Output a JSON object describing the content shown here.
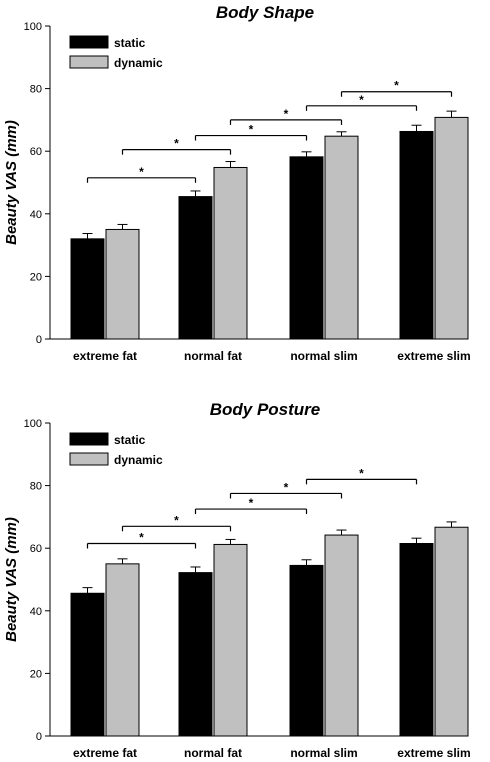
{
  "chart_data": [
    {
      "type": "bar",
      "title": "Body Shape",
      "ylabel": "Beauty VAS (mm)",
      "xlabel": "",
      "ylim": [
        0,
        100
      ],
      "yticks": [
        0,
        20,
        40,
        60,
        80,
        100
      ],
      "categories": [
        "extreme fat",
        "normal fat",
        "normal slim",
        "extreme slim"
      ],
      "series": [
        {
          "name": "static",
          "color": "#000000",
          "values": [
            32,
            45.5,
            58.2,
            66.3
          ],
          "errors": [
            1.7,
            1.8,
            1.6,
            2.0
          ]
        },
        {
          "name": "dynamic",
          "color": "#c0c0c0",
          "values": [
            35,
            54.8,
            64.8,
            70.8
          ],
          "errors": [
            1.6,
            1.9,
            1.4,
            2.0
          ]
        }
      ],
      "legend_position": "top-left",
      "significance": [
        {
          "from": [
            0,
            0
          ],
          "to": [
            1,
            0
          ],
          "y": 51.5,
          "label": "*"
        },
        {
          "from": [
            0,
            1
          ],
          "to": [
            1,
            1
          ],
          "y": 60.5,
          "label": "*"
        },
        {
          "from": [
            1,
            0
          ],
          "to": [
            2,
            0
          ],
          "y": 65,
          "label": "*"
        },
        {
          "from": [
            1,
            1
          ],
          "to": [
            2,
            1
          ],
          "y": 70,
          "label": "*"
        },
        {
          "from": [
            2,
            0
          ],
          "to": [
            3,
            0
          ],
          "y": 74.5,
          "label": "*"
        },
        {
          "from": [
            2,
            1
          ],
          "to": [
            3,
            1
          ],
          "y": 79,
          "label": "*"
        }
      ]
    },
    {
      "type": "bar",
      "title": "Body Posture",
      "ylabel": "Beauty VAS (mm)",
      "xlabel": "",
      "ylim": [
        0,
        100
      ],
      "yticks": [
        0,
        20,
        40,
        60,
        80,
        100
      ],
      "categories": [
        "extreme fat",
        "normal fat",
        "normal slim",
        "extreme slim"
      ],
      "series": [
        {
          "name": "static",
          "color": "#000000",
          "values": [
            45.6,
            52.2,
            54.5,
            61.5
          ],
          "errors": [
            1.8,
            1.8,
            1.8,
            1.7
          ]
        },
        {
          "name": "dynamic",
          "color": "#c0c0c0",
          "values": [
            55,
            61.2,
            64.2,
            66.7
          ],
          "errors": [
            1.6,
            1.6,
            1.6,
            1.7
          ]
        }
      ],
      "legend_position": "top-left",
      "significance": [
        {
          "from": [
            0,
            0
          ],
          "to": [
            1,
            0
          ],
          "y": 61.5,
          "label": "*"
        },
        {
          "from": [
            0,
            1
          ],
          "to": [
            1,
            1
          ],
          "y": 67,
          "label": "*"
        },
        {
          "from": [
            1,
            0
          ],
          "to": [
            2,
            0
          ],
          "y": 72.5,
          "label": "*"
        },
        {
          "from": [
            1,
            1
          ],
          "to": [
            2,
            1
          ],
          "y": 77.5,
          "label": "*"
        },
        {
          "from": [
            2,
            0
          ],
          "to": [
            3,
            0
          ],
          "y": 82,
          "label": "*"
        }
      ]
    }
  ]
}
